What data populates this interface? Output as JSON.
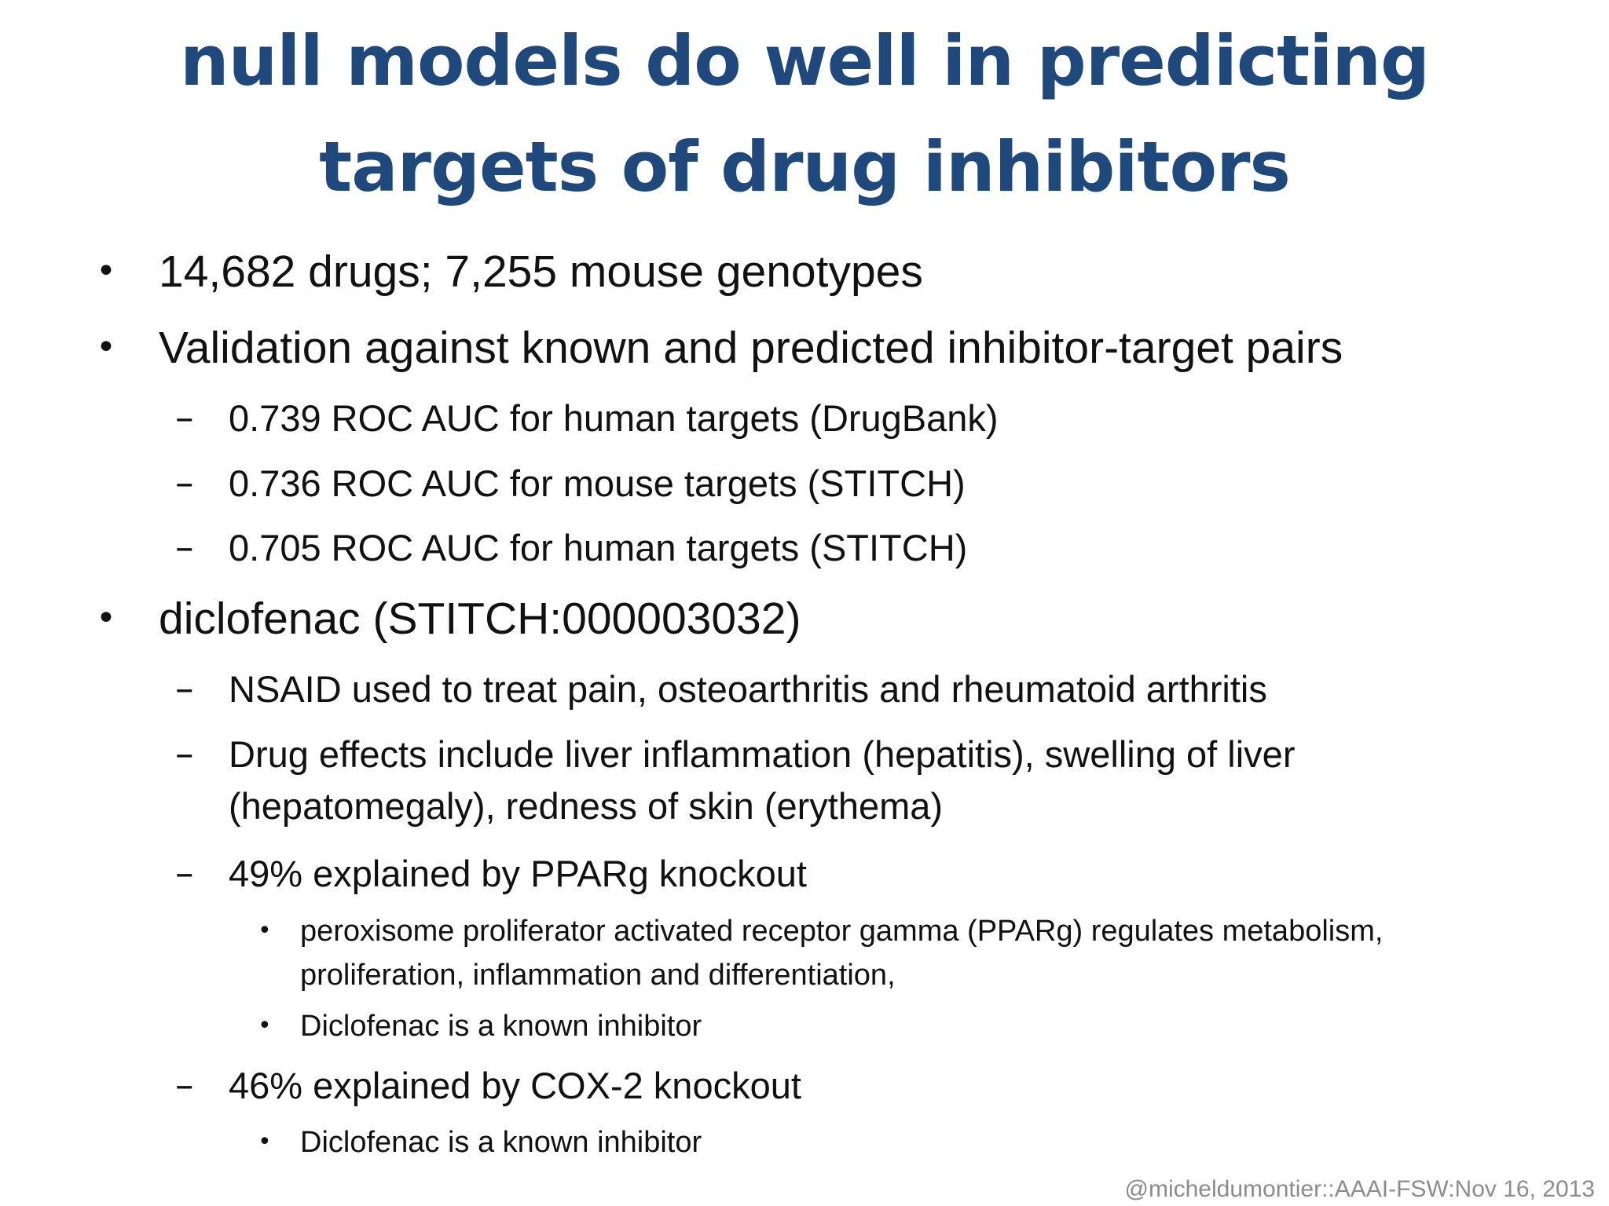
{
  "slide": {
    "title_line1": "null models do well in predicting",
    "title_line2": "targets of drug inhibitors",
    "bullet_l1": "•",
    "bullet_l2": "–",
    "bullet_l3": "•",
    "items": [
      {
        "level": 1,
        "text": "14,682 drugs; 7,255 mouse genotypes"
      },
      {
        "level": 1,
        "text": "Validation against known and predicted inhibitor-target pairs"
      },
      {
        "level": 2,
        "text": "0.739 ROC AUC for human targets (DrugBank)"
      },
      {
        "level": 2,
        "text": "0.736 ROC AUC for mouse targets (STITCH)"
      },
      {
        "level": 2,
        "text": "0.705 ROC AUC for human targets (STITCH)"
      },
      {
        "level": 1,
        "text": "diclofenac (STITCH:000003032)"
      },
      {
        "level": 2,
        "text": "NSAID used to treat pain, osteoarthritis and rheumatoid arthritis"
      },
      {
        "level": 2,
        "text": "Drug effects include liver inflammation (hepatitis), swelling of liver (hepatomegaly), redness of skin (erythema)"
      },
      {
        "level": 2,
        "text": "49% explained by PPARg knockout"
      },
      {
        "level": 3,
        "text": "peroxisome proliferator activated receptor gamma (PPARg) regulates metabolism, proliferation, inflammation and differentiation,"
      },
      {
        "level": 3,
        "text": "Diclofenac is a known inhibitor"
      },
      {
        "level": 2,
        "text": "46% explained by COX-2 knockout"
      },
      {
        "level": 3,
        "text": "Diclofenac is a known inhibitor"
      }
    ],
    "footer": "@micheldumontier::AAAI-FSW:Nov 16, 2013",
    "title_color": "#1f497d",
    "text_color": "#111111"
  }
}
